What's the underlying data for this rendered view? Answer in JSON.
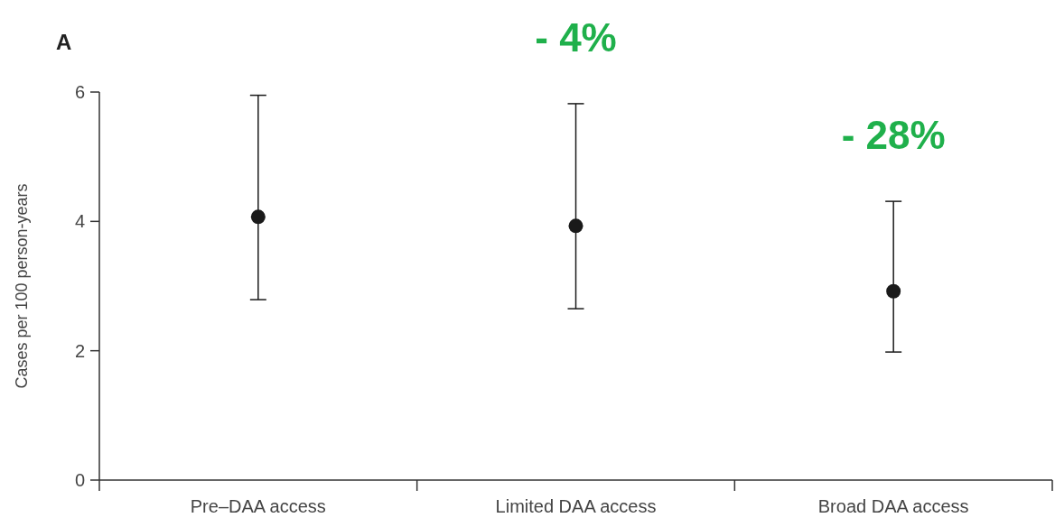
{
  "chart_data": {
    "type": "scatter",
    "title": "A",
    "ylabel": "Cases per 100 person-years",
    "categories": [
      "Pre–DAA access",
      "Limited DAA access",
      "Broad DAA access"
    ],
    "values": [
      4.07,
      3.93,
      2.92
    ],
    "errors": [
      [
        2.79,
        5.95
      ],
      [
        2.65,
        5.82
      ],
      [
        1.98,
        4.31
      ]
    ],
    "color": "#1a1a1a",
    "marker": "circle",
    "ylim": [
      0,
      6
    ],
    "yticks": [
      0,
      2,
      4,
      6
    ],
    "grid": false,
    "annotations": [
      "- 4%",
      "- 28%"
    ]
  }
}
